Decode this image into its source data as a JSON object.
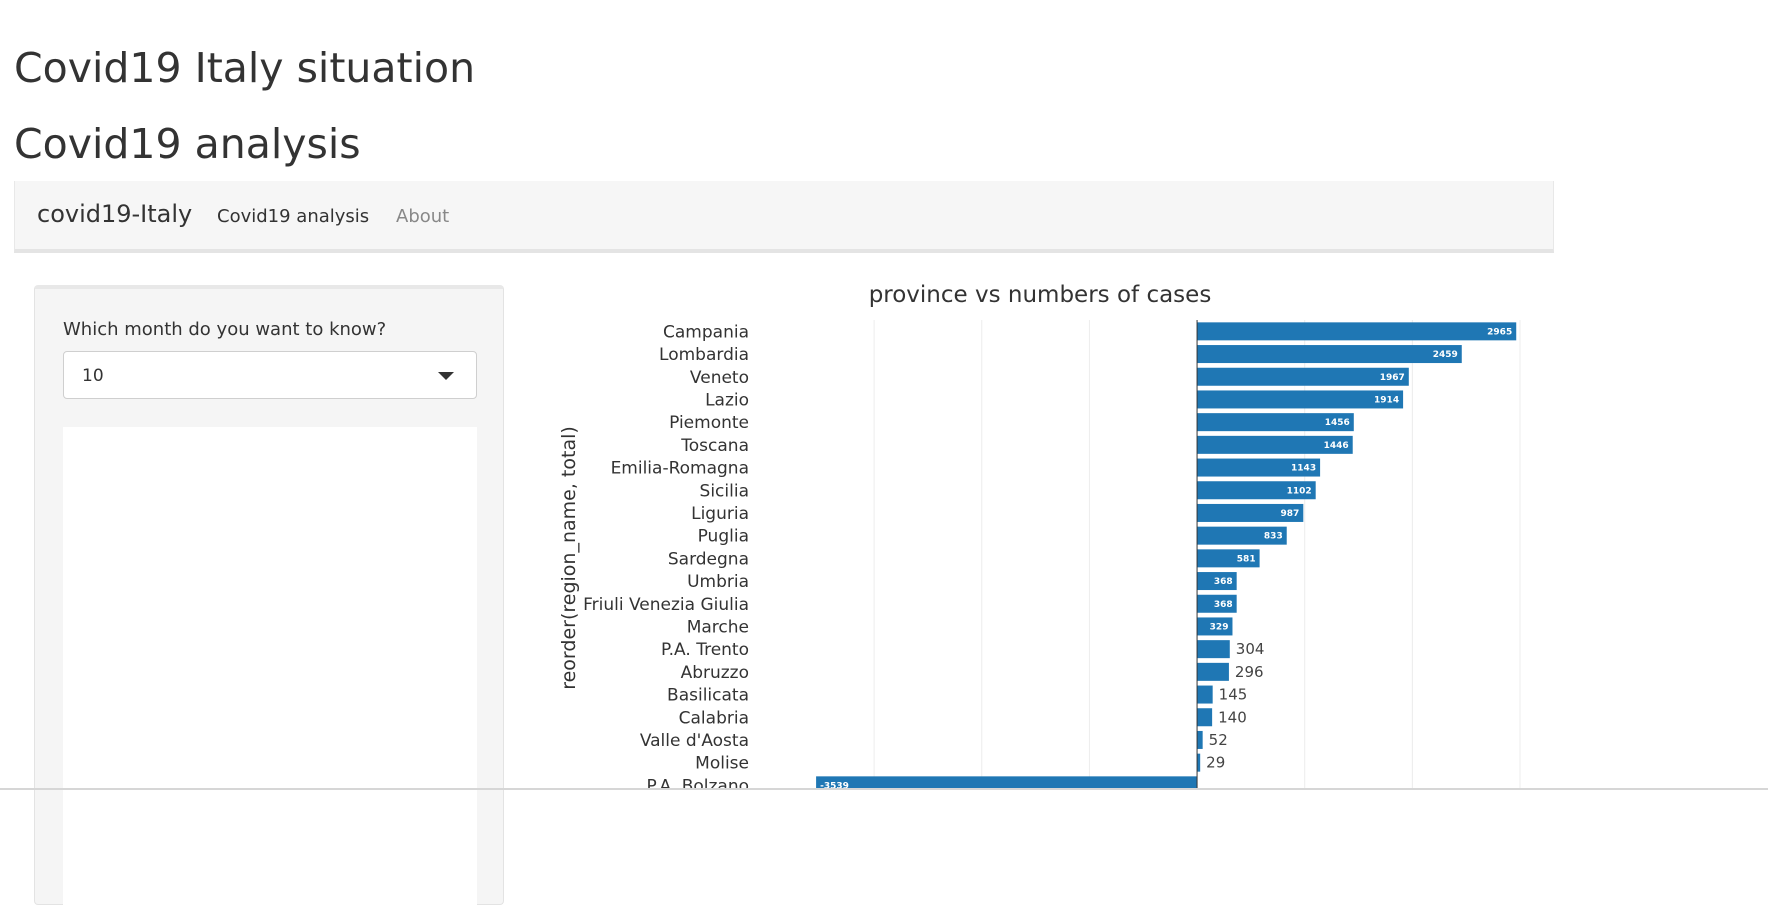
{
  "page": {
    "title": "Covid19 Italy situation",
    "subtitle": "Covid19 analysis"
  },
  "navbar": {
    "brand": "covid19-Italy",
    "items": [
      {
        "label": "Covid19 analysis",
        "active": true
      },
      {
        "label": "About",
        "active": false
      }
    ]
  },
  "sidebar": {
    "month_label": "Which month do you want to know?",
    "month_value": "10"
  },
  "colors": {
    "bar": "#1f77b4",
    "inside_label": "#ffffff",
    "outside_label": "#444444"
  },
  "chart_data": {
    "type": "bar",
    "orientation": "horizontal",
    "title": "province vs numbers of cases",
    "ylabel": "reorder(region_name, total)",
    "xlabel": "",
    "grid": true,
    "xlim": [
      -3800,
      3000
    ],
    "categories": [
      "Campania",
      "Lombardia",
      "Veneto",
      "Lazio",
      "Piemonte",
      "Toscana",
      "Emilia-Romagna",
      "Sicilia",
      "Liguria",
      "Puglia",
      "Sardegna",
      "Umbria",
      "Friuli Venezia Giulia",
      "Marche",
      "P.A. Trento",
      "Abruzzo",
      "Basilicata",
      "Calabria",
      "Valle d'Aosta",
      "Molise",
      "P.A. Bolzano"
    ],
    "values": [
      2965,
      2459,
      1967,
      1914,
      1456,
      1446,
      1143,
      1102,
      987,
      833,
      581,
      368,
      368,
      329,
      304,
      296,
      145,
      140,
      52,
      29,
      -3539
    ]
  }
}
